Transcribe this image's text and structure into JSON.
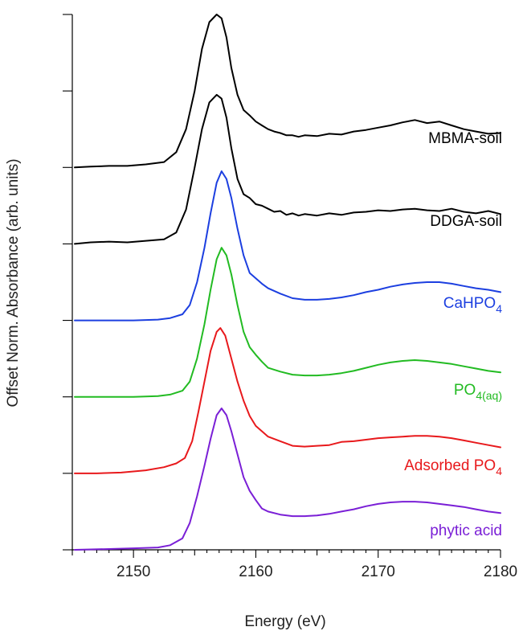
{
  "chart_data": {
    "type": "line",
    "title": "",
    "xlabel": "Energy (eV)",
    "ylabel": "Offset Norm. Absorbance (arb. units)",
    "xlim": [
      2145,
      2180
    ],
    "x_ticks": [
      2150,
      2160,
      2170,
      2180
    ],
    "x_tick_labels": [
      "2150",
      "2160",
      "2170",
      "2180"
    ],
    "ylim": [
      0,
      7
    ],
    "y_ticks": [
      0,
      1,
      2,
      3,
      4,
      5,
      6,
      7
    ],
    "y_tick_labels_shown": false,
    "legend": "inline labels to the right of each curve",
    "grid": false,
    "series": [
      {
        "name": "phytic acid",
        "label_text": "phytic acid",
        "label_subscript": "",
        "color": "#7a1fd6",
        "offset": 0,
        "x": [
          2145.2,
          2148,
          2150,
          2152,
          2153,
          2154,
          2154.6,
          2155.2,
          2155.8,
          2156.3,
          2156.8,
          2157.2,
          2157.6,
          2158,
          2158.5,
          2159,
          2159.5,
          2160,
          2160.5,
          2161,
          2162,
          2163,
          2164,
          2165,
          2166,
          2167,
          2168,
          2169,
          2170,
          2171,
          2172,
          2173,
          2174,
          2175,
          2176,
          2177,
          2178,
          2179,
          2180
        ],
        "y": [
          0.0,
          0.01,
          0.02,
          0.03,
          0.06,
          0.15,
          0.35,
          0.7,
          1.1,
          1.45,
          1.76,
          1.85,
          1.76,
          1.55,
          1.25,
          0.95,
          0.77,
          0.65,
          0.54,
          0.5,
          0.46,
          0.44,
          0.44,
          0.45,
          0.47,
          0.5,
          0.53,
          0.57,
          0.6,
          0.62,
          0.63,
          0.63,
          0.62,
          0.6,
          0.58,
          0.56,
          0.53,
          0.5,
          0.48
        ]
      },
      {
        "name": "Adsorbed PO4",
        "label_text": "Adsorbed PO",
        "label_subscript": "4",
        "color": "#e8191c",
        "offset": 0,
        "x": [
          2145.2,
          2147,
          2149,
          2151,
          2152.5,
          2153.5,
          2154.2,
          2154.8,
          2155.3,
          2155.8,
          2156.3,
          2156.8,
          2157.1,
          2157.5,
          2158,
          2158.5,
          2159,
          2159.5,
          2160,
          2160.5,
          2161,
          2162,
          2163,
          2164,
          2165,
          2166,
          2167,
          2168,
          2169,
          2170,
          2171,
          2172,
          2173,
          2174,
          2175,
          2176,
          2177,
          2178,
          2179,
          2180
        ],
        "y": [
          1.0,
          1.0,
          1.01,
          1.04,
          1.08,
          1.13,
          1.2,
          1.42,
          1.8,
          2.2,
          2.6,
          2.85,
          2.9,
          2.8,
          2.5,
          2.2,
          1.95,
          1.75,
          1.62,
          1.55,
          1.48,
          1.42,
          1.36,
          1.35,
          1.36,
          1.37,
          1.41,
          1.42,
          1.44,
          1.46,
          1.47,
          1.48,
          1.49,
          1.49,
          1.48,
          1.46,
          1.43,
          1.4,
          1.37,
          1.34
        ]
      },
      {
        "name": "PO4(aq)",
        "label_text": "PO",
        "label_subscript": "4(aq)",
        "color": "#22bb22",
        "offset": 0,
        "x": [
          2145.2,
          2148,
          2150,
          2152,
          2153,
          2154,
          2154.6,
          2155.2,
          2155.8,
          2156.3,
          2156.8,
          2157.2,
          2157.6,
          2158,
          2158.5,
          2159,
          2159.5,
          2160,
          2160.5,
          2161,
          2162,
          2163,
          2164,
          2165,
          2166,
          2167,
          2168,
          2169,
          2170,
          2171,
          2172,
          2173,
          2174,
          2175,
          2176,
          2177,
          2178,
          2179,
          2180
        ],
        "y": [
          2.0,
          2.0,
          2.0,
          2.01,
          2.03,
          2.08,
          2.2,
          2.5,
          2.95,
          3.4,
          3.8,
          3.95,
          3.85,
          3.6,
          3.2,
          2.85,
          2.65,
          2.55,
          2.46,
          2.38,
          2.33,
          2.29,
          2.28,
          2.28,
          2.29,
          2.31,
          2.34,
          2.38,
          2.42,
          2.45,
          2.47,
          2.48,
          2.47,
          2.45,
          2.43,
          2.4,
          2.37,
          2.34,
          2.32
        ]
      },
      {
        "name": "CaHPO4",
        "label_text": "CaHPO",
        "label_subscript": "4",
        "color": "#1c3fe0",
        "offset": 0,
        "x": [
          2145.2,
          2148,
          2150,
          2152,
          2153,
          2154,
          2154.6,
          2155.2,
          2155.8,
          2156.3,
          2156.8,
          2157.2,
          2157.6,
          2158,
          2158.5,
          2159,
          2159.5,
          2160,
          2160.5,
          2161,
          2162,
          2163,
          2164,
          2165,
          2166,
          2167,
          2168,
          2169,
          2170,
          2171,
          2172,
          2173,
          2174,
          2175,
          2176,
          2177,
          2178,
          2179,
          2180
        ],
        "y": [
          3.0,
          3.0,
          3.0,
          3.01,
          3.03,
          3.08,
          3.2,
          3.5,
          3.95,
          4.4,
          4.8,
          4.95,
          4.85,
          4.6,
          4.2,
          3.85,
          3.62,
          3.55,
          3.48,
          3.42,
          3.35,
          3.29,
          3.27,
          3.27,
          3.28,
          3.3,
          3.33,
          3.37,
          3.4,
          3.44,
          3.47,
          3.49,
          3.5,
          3.5,
          3.48,
          3.45,
          3.42,
          3.4,
          3.37
        ]
      },
      {
        "name": "DDGA-soil",
        "label_text": "DDGA-soil",
        "label_subscript": "",
        "color": "#000000",
        "offset": 0,
        "x": [
          2145.2,
          2146.5,
          2148,
          2149.5,
          2151,
          2152.5,
          2153.5,
          2154.3,
          2155,
          2155.6,
          2156.2,
          2156.8,
          2157.2,
          2157.6,
          2158,
          2158.5,
          2159,
          2159.5,
          2160,
          2160.5,
          2161,
          2161.5,
          2162,
          2162.5,
          2163,
          2163.5,
          2164,
          2165,
          2166,
          2167,
          2168,
          2169,
          2170,
          2171,
          2172,
          2173,
          2174,
          2175,
          2176,
          2177,
          2178,
          2179,
          2180
        ],
        "y": [
          4.0,
          4.02,
          4.03,
          4.02,
          4.04,
          4.06,
          4.15,
          4.45,
          5.0,
          5.5,
          5.85,
          5.95,
          5.9,
          5.65,
          5.25,
          4.85,
          4.65,
          4.6,
          4.52,
          4.5,
          4.46,
          4.42,
          4.43,
          4.38,
          4.4,
          4.37,
          4.39,
          4.37,
          4.4,
          4.38,
          4.41,
          4.42,
          4.44,
          4.43,
          4.45,
          4.46,
          4.44,
          4.43,
          4.46,
          4.42,
          4.4,
          4.43,
          4.39
        ]
      },
      {
        "name": "MBMA-soil",
        "label_text": "MBMA-soil",
        "label_subscript": "",
        "color": "#000000",
        "offset": 0,
        "x": [
          2145.2,
          2146.5,
          2148,
          2149.5,
          2151,
          2152.5,
          2153.5,
          2154.3,
          2155,
          2155.6,
          2156.2,
          2156.8,
          2157.2,
          2157.6,
          2158,
          2158.5,
          2159,
          2159.5,
          2160,
          2160.5,
          2161,
          2161.5,
          2162,
          2162.5,
          2163,
          2163.5,
          2164,
          2165,
          2166,
          2167,
          2168,
          2169,
          2170,
          2171,
          2172,
          2173,
          2174,
          2175,
          2176,
          2177,
          2178,
          2179,
          2180
        ],
        "y": [
          5.0,
          5.01,
          5.02,
          5.02,
          5.04,
          5.07,
          5.2,
          5.5,
          6.0,
          6.55,
          6.9,
          7.0,
          6.95,
          6.7,
          6.3,
          5.95,
          5.75,
          5.68,
          5.6,
          5.55,
          5.5,
          5.47,
          5.45,
          5.42,
          5.42,
          5.4,
          5.42,
          5.41,
          5.44,
          5.43,
          5.47,
          5.49,
          5.52,
          5.55,
          5.59,
          5.62,
          5.58,
          5.6,
          5.55,
          5.5,
          5.47,
          5.44,
          5.45
        ]
      }
    ]
  }
}
